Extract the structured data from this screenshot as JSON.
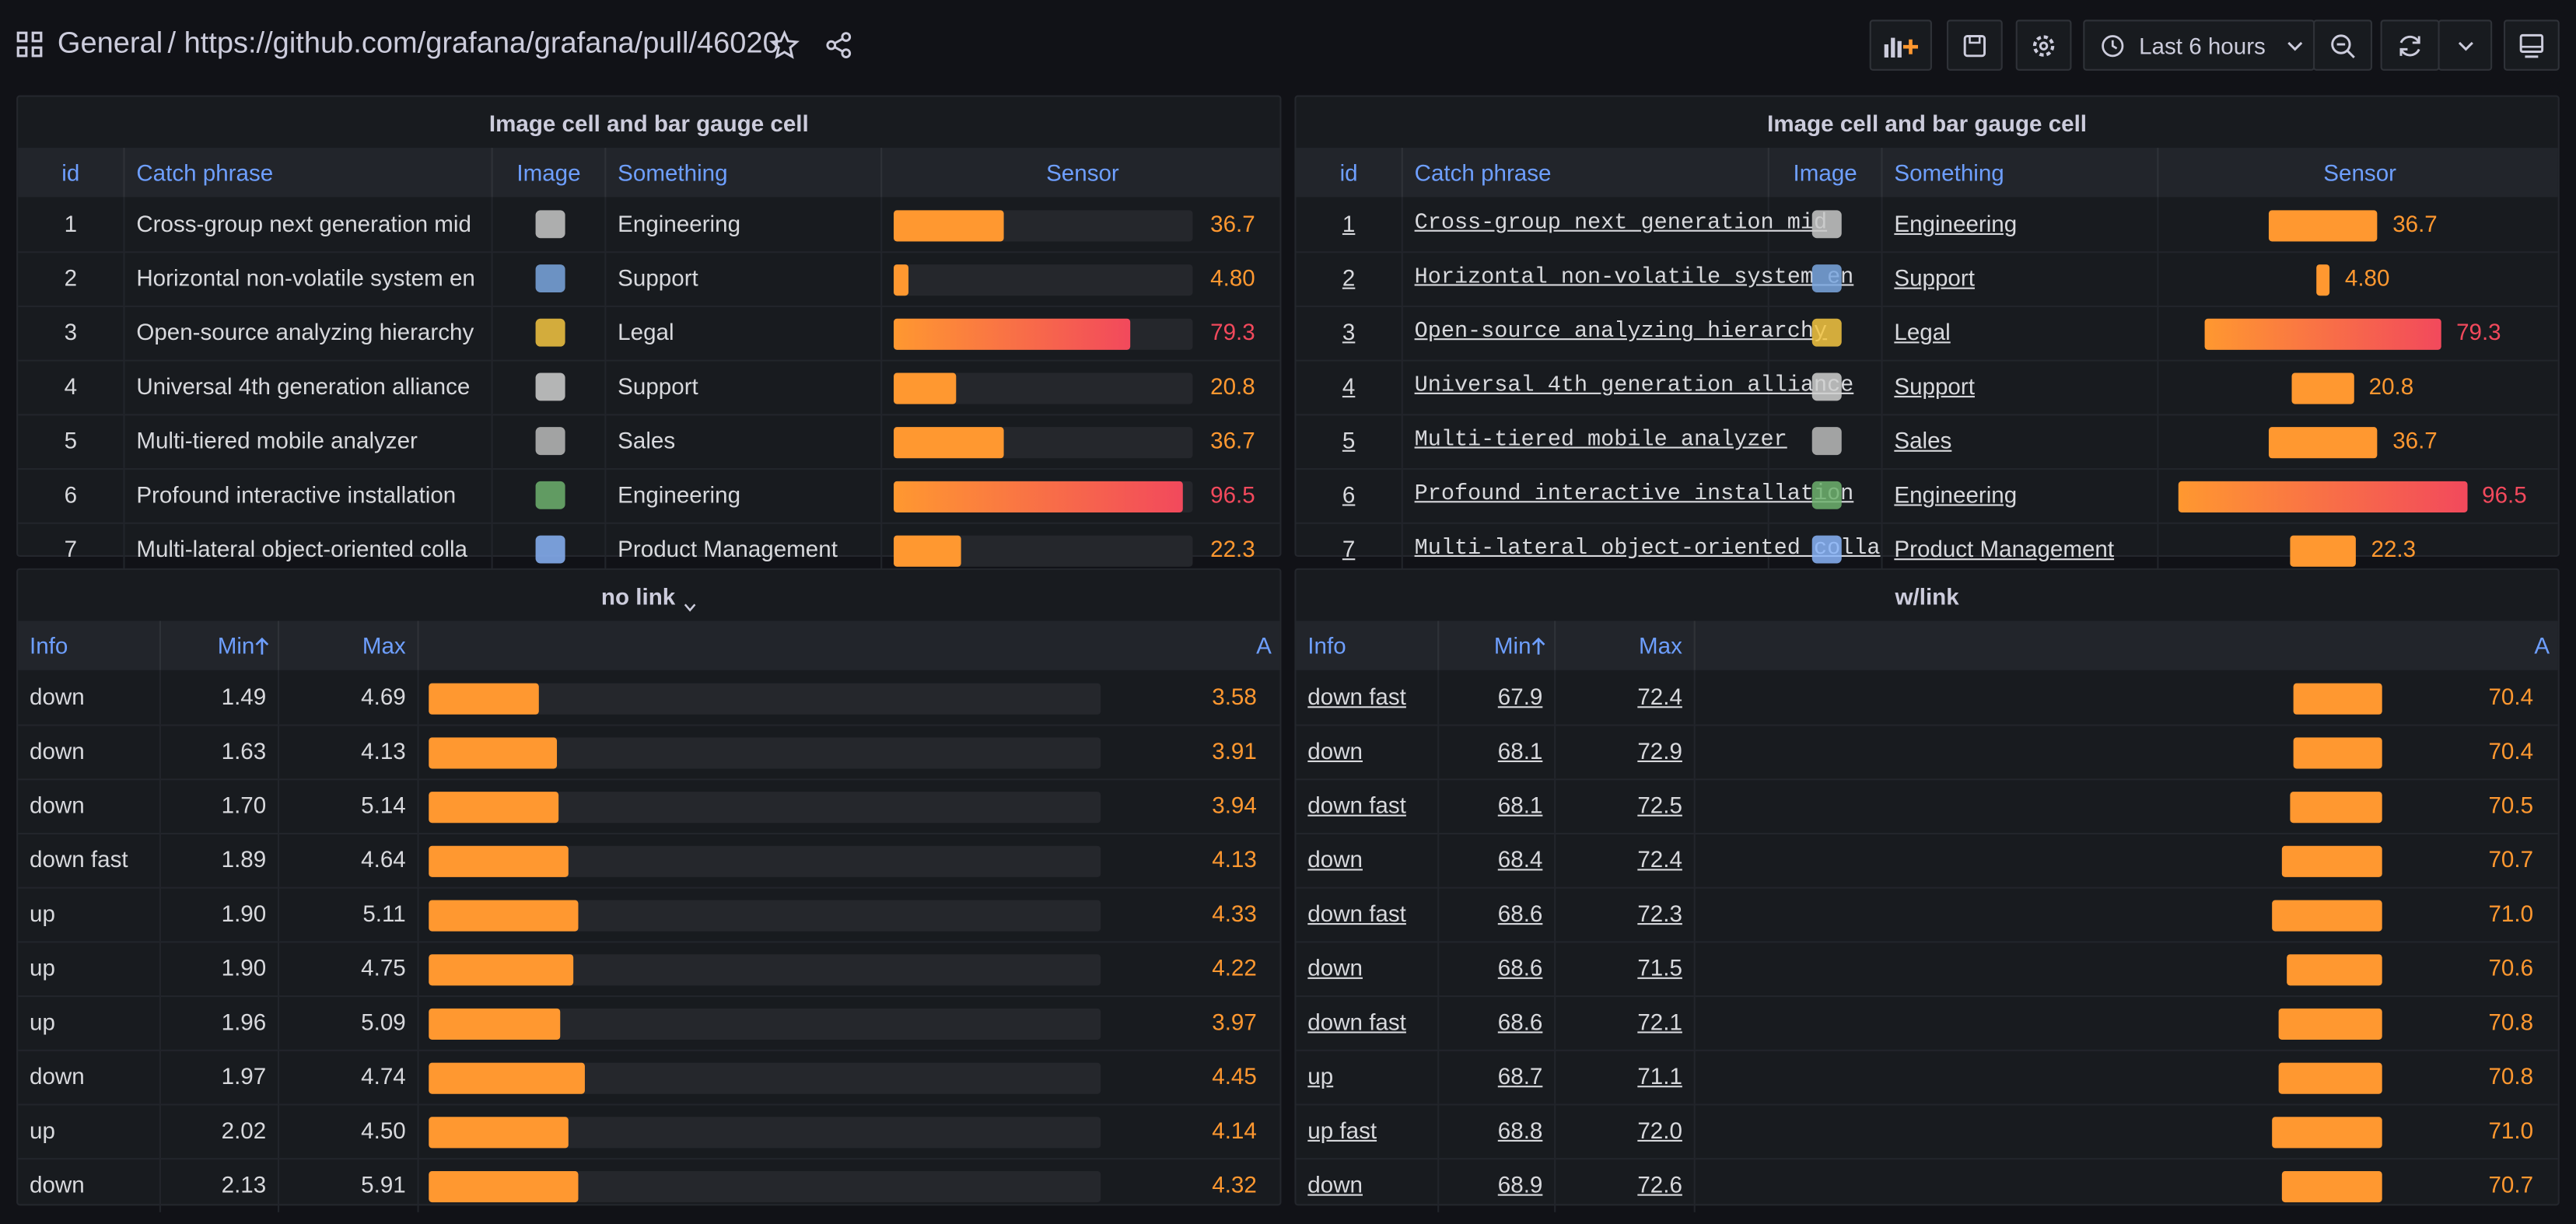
{
  "header": {
    "title": "General",
    "path": "/ https://github.com/grafana/grafana/pull/46020"
  },
  "toolbar": {
    "time_range": "Last 6 hours"
  },
  "panels": [
    {
      "title": "Image cell and bar gauge cell",
      "columns": [
        "id",
        "Catch phrase",
        "Image",
        "Something",
        "Sensor"
      ],
      "cells": [
        [
          1,
          "Cross-group next generation mid",
          "Engineering"
        ],
        [
          2,
          "Horizontal non-volatile system en",
          "Support"
        ],
        [
          3,
          "Open-source analyzing hierarchy",
          "Legal"
        ],
        [
          4,
          "Universal 4th generation alliance",
          "Support"
        ],
        [
          5,
          "Multi-tiered mobile analyzer",
          "Sales"
        ],
        [
          6,
          "Profound interactive installation",
          "Engineering"
        ],
        [
          7,
          "Multi-lateral object-oriented colla",
          "Product Management"
        ]
      ],
      "gauge": {
        "values": [
          36.7,
          4.8,
          79.3,
          20.8,
          36.7,
          96.5,
          22.3
        ],
        "value_labels": [
          "36.7",
          "4.80",
          "79.3",
          "20.8",
          "36.7",
          "96.5",
          "22.3"
        ],
        "colors": [
          "#ff9830",
          "#ff9830",
          "#f2495c",
          "#ff9830",
          "#ff9830",
          "#f2495c",
          "#ff9830"
        ],
        "range": [
          0,
          100
        ]
      }
    },
    {
      "title": "Image cell and bar gauge cell",
      "columns": [
        "id",
        "Catch phrase",
        "Image",
        "Something",
        "Sensor"
      ],
      "cells": [
        [
          1,
          "Cross-group next generation mid",
          "Engineering"
        ],
        [
          2,
          "Horizontal non-volatile system en",
          "Support"
        ],
        [
          3,
          "Open-source analyzing hierarchy",
          "Legal"
        ],
        [
          4,
          "Universal 4th generation alliance",
          "Support"
        ],
        [
          5,
          "Multi-tiered mobile analyzer",
          "Sales"
        ],
        [
          6,
          "Profound interactive installation",
          "Engineering"
        ],
        [
          7,
          "Multi-lateral object-oriented colla",
          "Product Management"
        ]
      ],
      "gauge": {
        "values": [
          36.7,
          4.8,
          79.3,
          20.8,
          36.7,
          96.5,
          22.3
        ],
        "value_labels": [
          "36.7",
          "4.80",
          "79.3",
          "20.8",
          "36.7",
          "96.5",
          "22.3"
        ],
        "colors": [
          "#ff9830",
          "#ff9830",
          "#f2495c",
          "#ff9830",
          "#ff9830",
          "#f2495c",
          "#ff9830"
        ],
        "range": [
          0,
          100
        ]
      }
    },
    {
      "title": "no link",
      "columns": [
        "Info",
        "Min",
        "Max",
        "A"
      ],
      "cells": [
        [
          "down",
          "1.49",
          "4.69"
        ],
        [
          "down",
          "1.63",
          "4.13"
        ],
        [
          "down",
          "1.70",
          "5.14"
        ],
        [
          "down fast",
          "1.89",
          "4.64"
        ],
        [
          "up",
          "1.90",
          "5.11"
        ],
        [
          "up",
          "1.90",
          "4.75"
        ],
        [
          "up",
          "1.96",
          "5.09"
        ],
        [
          "down",
          "1.97",
          "4.74"
        ],
        [
          "up",
          "2.02",
          "4.50"
        ],
        [
          "down",
          "2.13",
          "5.91"
        ]
      ],
      "gauge": {
        "values": [
          3.58,
          3.91,
          3.94,
          4.13,
          4.33,
          4.22,
          3.97,
          4.45,
          4.14,
          4.32
        ],
        "value_labels": [
          "3.58",
          "3.91",
          "3.94",
          "4.13",
          "4.33",
          "4.22",
          "3.97",
          "4.45",
          "4.14",
          "4.32"
        ],
        "colors": [
          "#ff9830",
          "#ff9830",
          "#ff9830",
          "#ff9830",
          "#ff9830",
          "#ff9830",
          "#ff9830",
          "#ff9830",
          "#ff9830",
          "#ff9830"
        ],
        "range": [
          1.49,
          14.2
        ]
      }
    },
    {
      "title": "w/link",
      "columns": [
        "Info",
        "Min",
        "Max",
        "A"
      ],
      "cells": [
        [
          "down fast",
          "67.9",
          "72.4"
        ],
        [
          "down",
          "68.1",
          "72.9"
        ],
        [
          "down fast",
          "68.1",
          "72.5"
        ],
        [
          "down",
          "68.4",
          "72.4"
        ],
        [
          "down fast",
          "68.6",
          "72.3"
        ],
        [
          "down",
          "68.6",
          "71.5"
        ],
        [
          "down fast",
          "68.6",
          "72.1"
        ],
        [
          "up",
          "68.7",
          "71.1"
        ],
        [
          "up fast",
          "68.8",
          "72.0"
        ],
        [
          "down",
          "68.9",
          "72.6"
        ]
      ],
      "gauge": {
        "values": [
          70.4,
          70.4,
          70.5,
          70.7,
          71.0,
          70.6,
          70.8,
          70.8,
          71.0,
          70.7
        ],
        "value_labels": [
          "70.4",
          "70.4",
          "70.5",
          "70.7",
          "71.0",
          "70.6",
          "70.8",
          "70.8",
          "71.0",
          "70.7"
        ],
        "colors": [
          "#ff9830",
          "#ff9830",
          "#ff9830",
          "#ff9830",
          "#ff9830",
          "#ff9830",
          "#ff9830",
          "#ff9830",
          "#ff9830",
          "#ff9830"
        ],
        "range": [
          67.9,
          87
        ]
      }
    }
  ]
}
